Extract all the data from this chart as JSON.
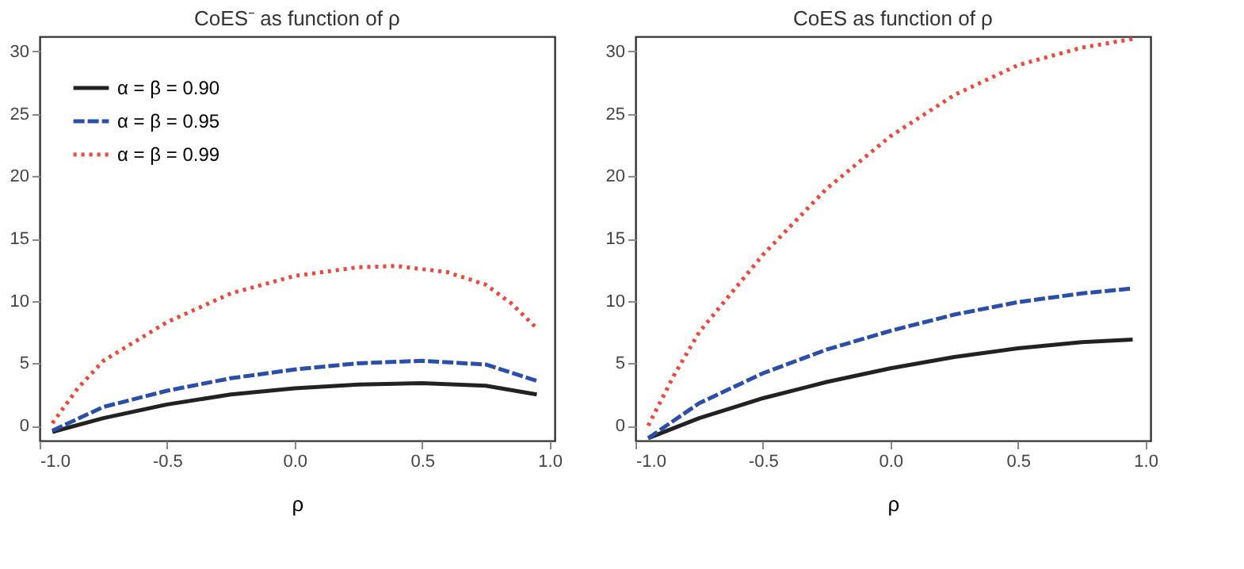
{
  "chart_data": [
    {
      "type": "line",
      "title": "CoES⁻ as function of ρ",
      "xlabel": "ρ",
      "xlim": [
        -1.0,
        1.02
      ],
      "ylim": [
        -1.2,
        31.2
      ],
      "xticks": [
        {
          "value": -1,
          "label": "-1.0"
        },
        {
          "value": -0.5,
          "label": "-0.5"
        },
        {
          "value": 0,
          "label": "0.0"
        },
        {
          "value": 0.5,
          "label": "0.5"
        },
        {
          "value": 1,
          "label": "1.0"
        }
      ],
      "yticks": [
        0,
        5,
        10,
        15,
        20,
        25,
        30
      ],
      "grid": false,
      "legend": "top left",
      "marker": "none",
      "series": [
        {
          "name": "α = β = 0.90",
          "color": "#222222",
          "line_style": "solid",
          "x": [
            -0.95,
            -0.75,
            -0.5,
            -0.25,
            0,
            0.25,
            0.5,
            0.75,
            0.95
          ],
          "values": [
            -0.5,
            0.6,
            1.7,
            2.5,
            3.0,
            3.3,
            3.4,
            3.2,
            2.5
          ]
        },
        {
          "name": "α = β = 0.95",
          "color": "#2b4fa8",
          "line_style": "dashed",
          "x": [
            -0.95,
            -0.75,
            -0.5,
            -0.25,
            0,
            0.25,
            0.5,
            0.75,
            0.95
          ],
          "values": [
            -0.4,
            1.5,
            2.8,
            3.8,
            4.5,
            5.0,
            5.2,
            4.9,
            3.6
          ]
        },
        {
          "name": "α = β = 0.99",
          "color": "#f0463c",
          "line_style": "dotted",
          "x": [
            -0.95,
            -0.85,
            -0.75,
            -0.5,
            -0.25,
            0,
            0.25,
            0.4,
            0.6,
            0.75,
            0.85,
            0.95
          ],
          "values": [
            0.2,
            3.0,
            5.2,
            8.3,
            10.6,
            12.0,
            12.7,
            12.8,
            12.3,
            11.3,
            9.8,
            7.8
          ]
        }
      ]
    },
    {
      "type": "line",
      "title": "CoES as function of ρ",
      "xlabel": "ρ",
      "xlim": [
        -1.0,
        1.02
      ],
      "ylim": [
        -1.2,
        31.2
      ],
      "xticks": [
        {
          "value": -1,
          "label": "-1.0"
        },
        {
          "value": -0.5,
          "label": "-0.5"
        },
        {
          "value": 0,
          "label": "0.0"
        },
        {
          "value": 0.5,
          "label": "0.5"
        },
        {
          "value": 1,
          "label": "1.0"
        }
      ],
      "yticks": [
        0,
        5,
        10,
        15,
        20,
        25,
        30
      ],
      "grid": false,
      "legend": "top left",
      "marker": "none",
      "series": [
        {
          "name": "α = β = 0.90",
          "color": "#222222",
          "line_style": "solid",
          "x": [
            -0.95,
            -0.75,
            -0.5,
            -0.25,
            0,
            0.25,
            0.5,
            0.75,
            0.95
          ],
          "values": [
            -1.0,
            0.6,
            2.2,
            3.5,
            4.6,
            5.5,
            6.2,
            6.7,
            6.9
          ]
        },
        {
          "name": "α = β = 0.95",
          "color": "#2b4fa8",
          "line_style": "dashed",
          "x": [
            -0.95,
            -0.75,
            -0.5,
            -0.25,
            0,
            0.25,
            0.5,
            0.75,
            0.95
          ],
          "values": [
            -1.0,
            1.8,
            4.2,
            6.1,
            7.6,
            8.9,
            9.9,
            10.6,
            11.0
          ]
        },
        {
          "name": "α = β = 0.99",
          "color": "#f0463c",
          "line_style": "dotted",
          "x": [
            -0.95,
            -0.85,
            -0.75,
            -0.5,
            -0.25,
            0,
            0.25,
            0.5,
            0.75,
            0.95
          ],
          "values": [
            0.0,
            4.0,
            7.5,
            13.7,
            19.0,
            23.2,
            26.5,
            28.9,
            30.3,
            31.0
          ]
        }
      ]
    }
  ]
}
